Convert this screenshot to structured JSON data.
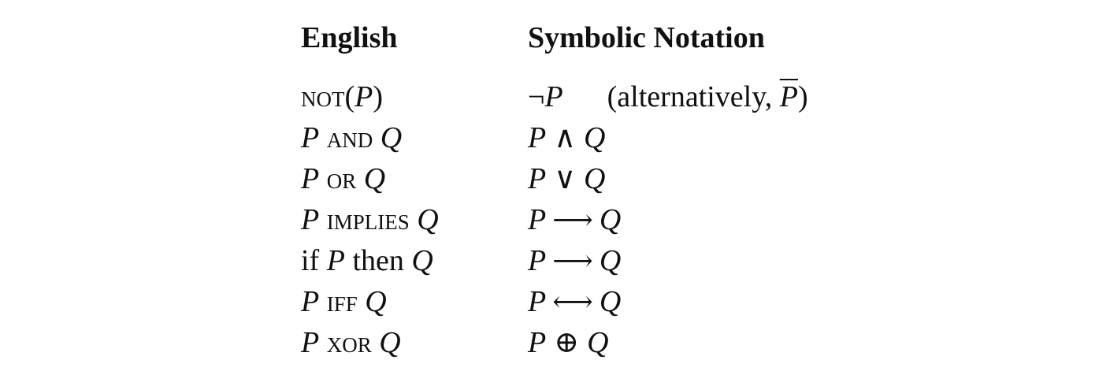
{
  "header": {
    "english": "English",
    "symbolic": "Symbolic Notation"
  },
  "rows": [
    {
      "english": {
        "op": "not",
        "open": "(",
        "P": "P",
        "close": ")"
      },
      "symbolic": {
        "neg": "¬",
        "P": "P",
        "alt_open": "(alternatively, ",
        "alt_P": "P",
        "alt_close": ")"
      }
    },
    {
      "english": {
        "P": "P",
        "op": "and",
        "Q": "Q"
      },
      "symbolic": {
        "P": "P",
        "op": "∧",
        "Q": "Q"
      }
    },
    {
      "english": {
        "P": "P",
        "op": "or",
        "Q": "Q"
      },
      "symbolic": {
        "P": "P",
        "op": "∨",
        "Q": "Q"
      }
    },
    {
      "english": {
        "P": "P",
        "op": "implies",
        "Q": "Q"
      },
      "symbolic": {
        "P": "P",
        "op": "⟶",
        "Q": "Q"
      }
    },
    {
      "english": {
        "pre": "if",
        "P": "P",
        "mid": "then",
        "Q": "Q"
      },
      "symbolic": {
        "P": "P",
        "op": "⟶",
        "Q": "Q"
      }
    },
    {
      "english": {
        "P": "P",
        "op": "iff",
        "Q": "Q"
      },
      "symbolic": {
        "P": "P",
        "op": "⟷",
        "Q": "Q"
      }
    },
    {
      "english": {
        "P": "P",
        "op": "xor",
        "Q": "Q"
      },
      "symbolic": {
        "P": "P",
        "op": "⊕",
        "Q": "Q"
      }
    }
  ]
}
